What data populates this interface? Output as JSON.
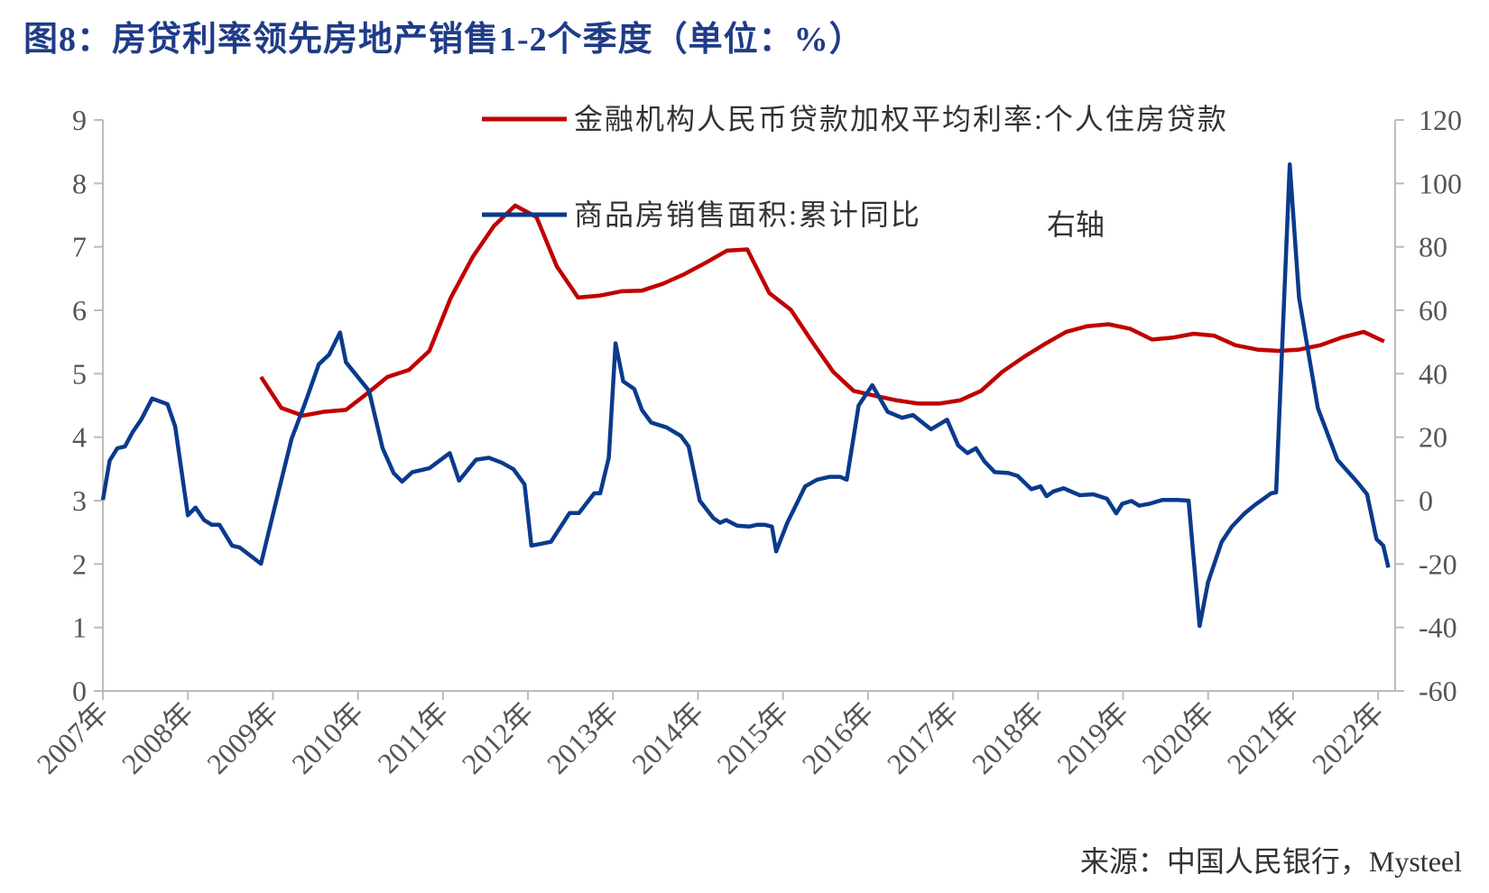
{
  "chart_data": {
    "type": "line",
    "title": "图8：房贷利率领先房地产销售1-2个季度（单位：%）",
    "source": "来源：中国人民银行，Mysteel",
    "annotation": "右轴",
    "xlim": [
      2007,
      2022.2
    ],
    "xticks": [
      {
        "value": 2007,
        "label": "2007年"
      },
      {
        "value": 2008,
        "label": "2008年"
      },
      {
        "value": 2009,
        "label": "2009年"
      },
      {
        "value": 2010,
        "label": "2010年"
      },
      {
        "value": 2011,
        "label": "2011年"
      },
      {
        "value": 2012,
        "label": "2012年"
      },
      {
        "value": 2013,
        "label": "2013年"
      },
      {
        "value": 2014,
        "label": "2014年"
      },
      {
        "value": 2015,
        "label": "2015年"
      },
      {
        "value": 2016,
        "label": "2016年"
      },
      {
        "value": 2017,
        "label": "2017年"
      },
      {
        "value": 2018,
        "label": "2018年"
      },
      {
        "value": 2019,
        "label": "2019年"
      },
      {
        "value": 2020,
        "label": "2020年"
      },
      {
        "value": 2021,
        "label": "2021年"
      },
      {
        "value": 2022,
        "label": "2022年"
      }
    ],
    "ylim": [
      0,
      9
    ],
    "yticks": [
      0,
      1,
      2,
      3,
      4,
      5,
      6,
      7,
      8,
      9
    ],
    "y2lim": [
      -60,
      120
    ],
    "y2ticks": [
      -60,
      -40,
      -20,
      0,
      20,
      40,
      60,
      80,
      100,
      120
    ],
    "series": [
      {
        "name": "金融机构人民币贷款加权平均利率:个人住房贷款",
        "color": "#c00000",
        "axis": "y",
        "x": [
          2008.86,
          2009.1,
          2009.35,
          2009.6,
          2009.86,
          2010.1,
          2010.35,
          2010.6,
          2010.84,
          2011.09,
          2011.35,
          2011.6,
          2011.85,
          2012.1,
          2012.34,
          2012.59,
          2012.84,
          2013.1,
          2013.34,
          2013.59,
          2013.84,
          2014.09,
          2014.34,
          2014.58,
          2014.84,
          2015.09,
          2015.34,
          2015.59,
          2015.83,
          2016.09,
          2016.34,
          2016.59,
          2016.84,
          2017.08,
          2017.33,
          2017.58,
          2017.84,
          2018.08,
          2018.33,
          2018.58,
          2018.83,
          2019.08,
          2019.34,
          2019.59,
          2019.83,
          2020.07,
          2020.32,
          2020.58,
          2020.83,
          2021.07,
          2021.32,
          2021.57,
          2021.83,
          2022.07
        ],
        "values": [
          4.95,
          4.46,
          4.34,
          4.4,
          4.43,
          4.68,
          4.95,
          5.06,
          5.36,
          6.19,
          6.84,
          7.33,
          7.65,
          7.47,
          6.69,
          6.2,
          6.23,
          6.3,
          6.31,
          6.42,
          6.57,
          6.75,
          6.94,
          6.96,
          6.27,
          6.01,
          5.51,
          5.03,
          4.73,
          4.65,
          4.58,
          4.53,
          4.53,
          4.58,
          4.73,
          5.03,
          5.27,
          5.47,
          5.66,
          5.75,
          5.78,
          5.71,
          5.54,
          5.57,
          5.63,
          5.6,
          5.45,
          5.38,
          5.36,
          5.38,
          5.45,
          5.57,
          5.66,
          5.51
        ]
      },
      {
        "name": "商品房销售面积:累计同比",
        "color": "#0a3a8c",
        "axis": "y2",
        "x": [
          2007.0,
          2007.08,
          2007.17,
          2007.26,
          2007.35,
          2007.45,
          2007.58,
          2007.76,
          2007.85,
          2008.0,
          2008.09,
          2008.19,
          2008.28,
          2008.37,
          2008.52,
          2008.61,
          2008.86,
          2009.04,
          2009.22,
          2009.37,
          2009.54,
          2009.66,
          2009.79,
          2009.86,
          2010.13,
          2010.29,
          2010.42,
          2010.52,
          2010.64,
          2010.84,
          2011.08,
          2011.19,
          2011.39,
          2011.54,
          2011.69,
          2011.83,
          2011.96,
          2012.04,
          2012.27,
          2012.49,
          2012.6,
          2012.78,
          2012.85,
          2012.95,
          2013.03,
          2013.12,
          2013.25,
          2013.34,
          2013.45,
          2013.63,
          2013.8,
          2013.89,
          2014.02,
          2014.18,
          2014.26,
          2014.33,
          2014.46,
          2014.6,
          2014.7,
          2014.78,
          2014.87,
          2014.92,
          2015.05,
          2015.26,
          2015.4,
          2015.55,
          2015.67,
          2015.75,
          2015.89,
          2016.05,
          2016.23,
          2016.4,
          2016.53,
          2016.74,
          2016.93,
          2017.06,
          2017.17,
          2017.27,
          2017.37,
          2017.49,
          2017.65,
          2017.76,
          2017.92,
          2018.03,
          2018.1,
          2018.18,
          2018.3,
          2018.49,
          2018.65,
          2018.81,
          2018.92,
          2018.99,
          2019.1,
          2019.19,
          2019.31,
          2019.46,
          2019.64,
          2019.77,
          2019.9,
          2020.0,
          2020.16,
          2020.28,
          2020.43,
          2020.54,
          2020.74,
          2020.8,
          2020.96,
          2021.07,
          2021.29,
          2021.52,
          2021.76,
          2021.87,
          2021.98,
          2022.06,
          2022.12
        ],
        "values": [
          0.2,
          12.6,
          16.5,
          17.1,
          21.6,
          25.5,
          32.2,
          30.4,
          23.4,
          -4.6,
          -2.2,
          -6.1,
          -7.6,
          -7.6,
          -14.2,
          -14.8,
          -19.9,
          0,
          19.5,
          30.1,
          43,
          46,
          53,
          43.6,
          34.6,
          16.5,
          8.7,
          6,
          9,
          10.2,
          15,
          6.3,
          12.9,
          13.5,
          12,
          9.9,
          5.1,
          -14.2,
          -13,
          -3.9,
          -3.9,
          2.3,
          2.3,
          13.5,
          49.6,
          37.6,
          35.2,
          28.6,
          24.6,
          23.1,
          20.4,
          17.1,
          0,
          -5.5,
          -7,
          -6.1,
          -7.9,
          -8.2,
          -7.6,
          -7.6,
          -8.2,
          -16,
          -7,
          4.5,
          6.6,
          7.5,
          7.5,
          6.6,
          30,
          36.4,
          28,
          26.1,
          27,
          22.5,
          25.5,
          17.4,
          15,
          16.5,
          12.3,
          9,
          8.7,
          7.8,
          3.6,
          4.5,
          1.4,
          2.9,
          3.9,
          1.7,
          2,
          0.6,
          -4,
          -1,
          -0.1,
          -1.6,
          -1,
          0.2,
          0.2,
          0,
          -39.5,
          -25.7,
          -13,
          -8.2,
          -4,
          -1.6,
          2.3,
          2.6,
          106,
          64,
          29.2,
          12.9,
          5.7,
          2,
          -12.1,
          -14.2,
          -21.1
        ]
      }
    ]
  }
}
